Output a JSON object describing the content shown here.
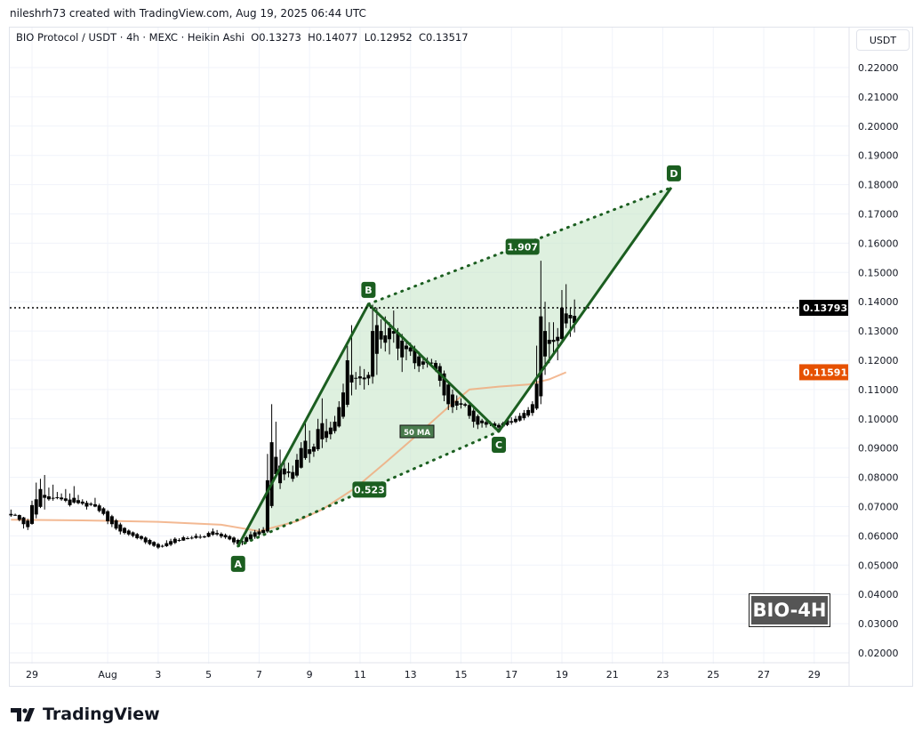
{
  "credit": "nileshrh73 created with TradingView.com, Aug 19, 2025 06:44 UTC",
  "legend": {
    "symbol": "BIO Protocol / USDT · 4h · MEXC · Heikin Ashi",
    "open": "O0.13273",
    "high": "H0.14077",
    "low": "L0.12952",
    "close": "C0.13517"
  },
  "unit_button": "USDT",
  "badge": "BIO-4H",
  "logo_text": "TradingView",
  "colors": {
    "candle": "#000000",
    "pattern": "#1b5e20",
    "pattern_fill": "#c8e6c9",
    "ma": "#f0a878",
    "ma_label": "#e65100",
    "price_label": "#000000"
  },
  "chart_data": {
    "type": "candlestick",
    "ylim": [
      0.015,
      0.225
    ],
    "xlim": [
      "2025-07-28 00:00",
      "2025-08-31 00:00"
    ],
    "y_ticks": [
      "0.02000",
      "0.03000",
      "0.04000",
      "0.05000",
      "0.06000",
      "0.07000",
      "0.08000",
      "0.09000",
      "0.10000",
      "0.11000",
      "0.12000",
      "0.13000",
      "0.14000",
      "0.15000",
      "0.16000",
      "0.17000",
      "0.18000",
      "0.19000",
      "0.20000",
      "0.21000",
      "0.22000"
    ],
    "x_ticks": [
      {
        "label": "29",
        "date": "2025-07-29 00:00"
      },
      {
        "label": "Aug",
        "date": "2025-08-01 00:00"
      },
      {
        "label": "3",
        "date": "2025-08-03 00:00"
      },
      {
        "label": "5",
        "date": "2025-08-05 00:00"
      },
      {
        "label": "7",
        "date": "2025-08-07 00:00"
      },
      {
        "label": "9",
        "date": "2025-08-09 00:00"
      },
      {
        "label": "11",
        "date": "2025-08-11 00:00"
      },
      {
        "label": "13",
        "date": "2025-08-13 00:00"
      },
      {
        "label": "15",
        "date": "2025-08-15 00:00"
      },
      {
        "label": "17",
        "date": "2025-08-17 00:00"
      },
      {
        "label": "19",
        "date": "2025-08-19 00:00"
      },
      {
        "label": "21",
        "date": "2025-08-21 00:00"
      },
      {
        "label": "23",
        "date": "2025-08-23 00:00"
      },
      {
        "label": "25",
        "date": "2025-08-25 00:00"
      },
      {
        "label": "27",
        "date": "2025-08-27 00:00"
      },
      {
        "label": "29",
        "date": "2025-08-29 00:00"
      }
    ],
    "grid": true,
    "current_price": {
      "value": 0.13793,
      "label": "0.13793"
    },
    "ma": {
      "name": "50 MA",
      "last_label": "0.11591",
      "points": [
        [
          "2025-07-28 04:00",
          0.0655
        ],
        [
          "2025-07-31 00:00",
          0.0653
        ],
        [
          "2025-08-03 00:00",
          0.0648
        ],
        [
          "2025-08-05 12:00",
          0.0638
        ],
        [
          "2025-08-07 00:00",
          0.0616
        ],
        [
          "2025-08-08 12:00",
          0.065
        ],
        [
          "2025-08-09 12:00",
          0.069
        ],
        [
          "2025-08-10 20:00",
          0.0765
        ],
        [
          "2025-08-12 00:00",
          0.085
        ],
        [
          "2025-08-13 08:00",
          0.095
        ],
        [
          "2025-08-14 12:00",
          0.104
        ],
        [
          "2025-08-15 08:00",
          0.11
        ],
        [
          "2025-08-16 12:00",
          0.111
        ],
        [
          "2025-08-17 16:00",
          0.1117
        ],
        [
          "2025-08-18 12:00",
          0.1135
        ],
        [
          "2025-08-19 04:00",
          0.1159
        ]
      ]
    },
    "pattern": {
      "points": [
        {
          "label": "A",
          "date": "2025-08-06 04:00",
          "price": 0.0565
        },
        {
          "label": "B",
          "date": "2025-08-11 08:00",
          "price": 0.1392
        },
        {
          "label": "C",
          "date": "2025-08-16 12:00",
          "price": 0.0957
        },
        {
          "label": "D",
          "date": "2025-08-23 08:00",
          "price": 0.179
        }
      ],
      "ratios": [
        {
          "between": "B-D",
          "label": "1.907"
        },
        {
          "between": "A-C",
          "label": "0.523"
        }
      ]
    },
    "candles": [
      [
        "2025-07-28 04:00",
        0.067,
        0.069,
        0.0665,
        0.0675
      ],
      [
        "2025-07-28 08:00",
        0.0672,
        0.0676,
        0.0668,
        0.067
      ],
      [
        "2025-07-28 12:00",
        0.0671,
        0.0673,
        0.065,
        0.0655
      ],
      [
        "2025-07-28 16:00",
        0.0663,
        0.0665,
        0.0625,
        0.064
      ],
      [
        "2025-07-28 20:00",
        0.0652,
        0.0658,
        0.062,
        0.063
      ],
      [
        "2025-07-29 00:00",
        0.0641,
        0.072,
        0.0638,
        0.0705
      ],
      [
        "2025-07-29 04:00",
        0.0673,
        0.0782,
        0.066,
        0.0725
      ],
      [
        "2025-07-29 08:00",
        0.0699,
        0.0795,
        0.0695,
        0.076
      ],
      [
        "2025-07-29 12:00",
        0.073,
        0.0808,
        0.069,
        0.074
      ],
      [
        "2025-07-29 16:00",
        0.0735,
        0.0765,
        0.072,
        0.0725
      ],
      [
        "2025-07-29 20:00",
        0.073,
        0.0775,
        0.072,
        0.073
      ],
      [
        "2025-07-30 00:00",
        0.073,
        0.075,
        0.0725,
        0.0732
      ],
      [
        "2025-07-30 04:00",
        0.0731,
        0.0745,
        0.072,
        0.0725
      ],
      [
        "2025-07-30 08:00",
        0.0728,
        0.076,
        0.0715,
        0.072
      ],
      [
        "2025-07-30 12:00",
        0.0724,
        0.0745,
        0.07,
        0.0705
      ],
      [
        "2025-07-30 16:00",
        0.0714,
        0.077,
        0.071,
        0.073
      ],
      [
        "2025-07-30 20:00",
        0.0722,
        0.074,
        0.0708,
        0.0712
      ],
      [
        "2025-07-31 00:00",
        0.0717,
        0.0725,
        0.0705,
        0.071
      ],
      [
        "2025-07-31 04:00",
        0.0713,
        0.072,
        0.069,
        0.07
      ],
      [
        "2025-07-31 08:00",
        0.0706,
        0.0715,
        0.0702,
        0.071
      ],
      [
        "2025-07-31 12:00",
        0.0708,
        0.073,
        0.0698,
        0.07
      ],
      [
        "2025-07-31 16:00",
        0.0704,
        0.071,
        0.068,
        0.0685
      ],
      [
        "2025-07-31 20:00",
        0.0694,
        0.0698,
        0.067,
        0.0675
      ],
      [
        "2025-08-01 00:00",
        0.0684,
        0.0688,
        0.064,
        0.065
      ],
      [
        "2025-08-01 04:00",
        0.0667,
        0.0672,
        0.063,
        0.064
      ],
      [
        "2025-08-01 08:00",
        0.0653,
        0.0658,
        0.062,
        0.0625
      ],
      [
        "2025-08-01 12:00",
        0.0639,
        0.0645,
        0.0605,
        0.0615
      ],
      [
        "2025-08-01 16:00",
        0.0627,
        0.063,
        0.0605,
        0.061
      ],
      [
        "2025-08-01 20:00",
        0.0618,
        0.0622,
        0.06,
        0.0605
      ],
      [
        "2025-08-02 00:00",
        0.0612,
        0.0615,
        0.0595,
        0.06
      ],
      [
        "2025-08-02 04:00",
        0.0606,
        0.061,
        0.0588,
        0.0592
      ],
      [
        "2025-08-02 08:00",
        0.0599,
        0.0602,
        0.0585,
        0.059
      ],
      [
        "2025-08-02 12:00",
        0.0594,
        0.0598,
        0.0572,
        0.0578
      ],
      [
        "2025-08-02 16:00",
        0.0586,
        0.059,
        0.0568,
        0.0572
      ],
      [
        "2025-08-02 20:00",
        0.0579,
        0.0582,
        0.0562,
        0.0566
      ],
      [
        "2025-08-03 00:00",
        0.0572,
        0.0576,
        0.0555,
        0.056
      ],
      [
        "2025-08-03 04:00",
        0.0566,
        0.057,
        0.056,
        0.0565
      ],
      [
        "2025-08-03 08:00",
        0.0565,
        0.0585,
        0.0562,
        0.0575
      ],
      [
        "2025-08-03 12:00",
        0.057,
        0.059,
        0.0565,
        0.0582
      ],
      [
        "2025-08-03 16:00",
        0.0576,
        0.0595,
        0.0572,
        0.059
      ],
      [
        "2025-08-03 20:00",
        0.0583,
        0.0592,
        0.058,
        0.0586
      ],
      [
        "2025-08-04 00:00",
        0.0584,
        0.06,
        0.0583,
        0.0595
      ],
      [
        "2025-08-04 04:00",
        0.059,
        0.0598,
        0.0588,
        0.0592
      ],
      [
        "2025-08-04 08:00",
        0.0591,
        0.06,
        0.0588,
        0.0594
      ],
      [
        "2025-08-04 12:00",
        0.0593,
        0.0608,
        0.059,
        0.06
      ],
      [
        "2025-08-04 16:00",
        0.0597,
        0.0605,
        0.059,
        0.0595
      ],
      [
        "2025-08-04 20:00",
        0.0596,
        0.0602,
        0.0592,
        0.0598
      ],
      [
        "2025-08-05 00:00",
        0.0597,
        0.0615,
        0.0595,
        0.061
      ],
      [
        "2025-08-05 04:00",
        0.0604,
        0.0625,
        0.06,
        0.0615
      ],
      [
        "2025-08-05 08:00",
        0.061,
        0.062,
        0.06,
        0.0605
      ],
      [
        "2025-08-05 12:00",
        0.0607,
        0.0612,
        0.0592,
        0.0598
      ],
      [
        "2025-08-05 16:00",
        0.0603,
        0.0608,
        0.059,
        0.0595
      ],
      [
        "2025-08-05 20:00",
        0.0599,
        0.0603,
        0.0585,
        0.0588
      ],
      [
        "2025-08-06 00:00",
        0.0594,
        0.0598,
        0.057,
        0.0578
      ],
      [
        "2025-08-06 04:00",
        0.0586,
        0.059,
        0.0565,
        0.0572
      ],
      [
        "2025-08-06 08:00",
        0.0579,
        0.0585,
        0.0568,
        0.0582
      ],
      [
        "2025-08-06 12:00",
        0.058,
        0.06,
        0.0575,
        0.0595
      ],
      [
        "2025-08-06 16:00",
        0.0588,
        0.0615,
        0.0585,
        0.0605
      ],
      [
        "2025-08-06 20:00",
        0.0597,
        0.062,
        0.059,
        0.0612
      ],
      [
        "2025-08-07 00:00",
        0.0605,
        0.0625,
        0.06,
        0.0615
      ],
      [
        "2025-08-07 04:00",
        0.061,
        0.063,
        0.0605,
        0.062
      ],
      [
        "2025-08-07 08:00",
        0.0615,
        0.088,
        0.061,
        0.079
      ],
      [
        "2025-08-07 12:00",
        0.0702,
        0.105,
        0.0695,
        0.092
      ],
      [
        "2025-08-07 16:00",
        0.0811,
        0.099,
        0.08,
        0.087
      ],
      [
        "2025-08-07 20:00",
        0.084,
        0.0895,
        0.076,
        0.078
      ],
      [
        "2025-08-08 00:00",
        0.081,
        0.086,
        0.079,
        0.083
      ],
      [
        "2025-08-08 04:00",
        0.082,
        0.085,
        0.08,
        0.0815
      ],
      [
        "2025-08-08 08:00",
        0.0818,
        0.084,
        0.0785,
        0.0795
      ],
      [
        "2025-08-08 12:00",
        0.0806,
        0.088,
        0.08,
        0.086
      ],
      [
        "2025-08-08 16:00",
        0.0833,
        0.092,
        0.083,
        0.09
      ],
      [
        "2025-08-08 20:00",
        0.0866,
        0.099,
        0.086,
        0.0925
      ],
      [
        "2025-08-09 00:00",
        0.0896,
        0.096,
        0.085,
        0.088
      ],
      [
        "2025-08-09 04:00",
        0.0888,
        0.0915,
        0.087,
        0.0905
      ],
      [
        "2025-08-09 08:00",
        0.0896,
        0.1,
        0.089,
        0.0965
      ],
      [
        "2025-08-09 12:00",
        0.093,
        0.107,
        0.09,
        0.0985
      ],
      [
        "2025-08-09 16:00",
        0.0958,
        0.1,
        0.092,
        0.0935
      ],
      [
        "2025-08-09 20:00",
        0.0947,
        0.099,
        0.093,
        0.097
      ],
      [
        "2025-08-10 00:00",
        0.0958,
        0.101,
        0.095,
        0.099
      ],
      [
        "2025-08-10 04:00",
        0.0974,
        0.106,
        0.097,
        0.104
      ],
      [
        "2025-08-10 08:00",
        0.1007,
        0.112,
        0.1,
        0.109
      ],
      [
        "2025-08-10 12:00",
        0.1048,
        0.125,
        0.104,
        0.12
      ],
      [
        "2025-08-10 16:00",
        0.1124,
        0.132,
        0.108,
        0.115
      ],
      [
        "2025-08-10 20:00",
        0.1137,
        0.116,
        0.11,
        0.114
      ],
      [
        "2025-08-11 00:00",
        0.1138,
        0.118,
        0.1115,
        0.1145
      ],
      [
        "2025-08-11 04:00",
        0.1141,
        0.117,
        0.11,
        0.1135
      ],
      [
        "2025-08-11 08:00",
        0.1138,
        0.116,
        0.1115,
        0.115
      ],
      [
        "2025-08-11 12:00",
        0.1144,
        0.139,
        0.112,
        0.13
      ],
      [
        "2025-08-11 16:00",
        0.1222,
        0.138,
        0.115,
        0.132
      ],
      [
        "2025-08-11 20:00",
        0.1271,
        0.134,
        0.124,
        0.13
      ],
      [
        "2025-08-12 00:00",
        0.1285,
        0.135,
        0.123,
        0.126
      ],
      [
        "2025-08-12 04:00",
        0.1272,
        0.133,
        0.122,
        0.131
      ],
      [
        "2025-08-12 08:00",
        0.1291,
        0.137,
        0.126,
        0.13
      ],
      [
        "2025-08-12 12:00",
        0.1295,
        0.131,
        0.12,
        0.124
      ],
      [
        "2025-08-12 16:00",
        0.1267,
        0.129,
        0.116,
        0.121
      ],
      [
        "2025-08-12 20:00",
        0.1238,
        0.127,
        0.12,
        0.125
      ],
      [
        "2025-08-13 00:00",
        0.1244,
        0.126,
        0.1215,
        0.123
      ],
      [
        "2025-08-13 04:00",
        0.1237,
        0.125,
        0.117,
        0.119
      ],
      [
        "2025-08-13 08:00",
        0.1213,
        0.123,
        0.116,
        0.118
      ],
      [
        "2025-08-13 12:00",
        0.1196,
        0.121,
        0.117,
        0.1185
      ],
      [
        "2025-08-13 16:00",
        0.119,
        0.121,
        0.1175,
        0.1195
      ],
      [
        "2025-08-13 20:00",
        0.1192,
        0.1205,
        0.118,
        0.119
      ],
      [
        "2025-08-14 00:00",
        0.1191,
        0.12,
        0.116,
        0.117
      ],
      [
        "2025-08-14 04:00",
        0.118,
        0.119,
        0.111,
        0.113
      ],
      [
        "2025-08-14 08:00",
        0.1155,
        0.1165,
        0.106,
        0.108
      ],
      [
        "2025-08-14 12:00",
        0.1117,
        0.113,
        0.103,
        0.105
      ],
      [
        "2025-08-14 16:00",
        0.1083,
        0.11,
        0.102,
        0.104
      ],
      [
        "2025-08-14 20:00",
        0.1061,
        0.108,
        0.103,
        0.1045
      ],
      [
        "2025-08-15 00:00",
        0.1053,
        0.107,
        0.1035,
        0.1048
      ],
      [
        "2025-08-15 04:00",
        0.105,
        0.1055,
        0.104,
        0.1045
      ],
      [
        "2025-08-15 08:00",
        0.1047,
        0.1055,
        0.1,
        0.101
      ],
      [
        "2025-08-15 12:00",
        0.1028,
        0.1035,
        0.097,
        0.099
      ],
      [
        "2025-08-15 16:00",
        0.1009,
        0.1015,
        0.0965,
        0.098
      ],
      [
        "2025-08-15 20:00",
        0.0994,
        0.1,
        0.097,
        0.0985
      ],
      [
        "2025-08-16 00:00",
        0.0989,
        0.1,
        0.097,
        0.098
      ],
      [
        "2025-08-16 04:00",
        0.0984,
        0.0992,
        0.0975,
        0.0985
      ],
      [
        "2025-08-16 08:00",
        0.0984,
        0.099,
        0.0965,
        0.0975
      ],
      [
        "2025-08-16 12:00",
        0.0979,
        0.0985,
        0.0958,
        0.097
      ],
      [
        "2025-08-16 16:00",
        0.0974,
        0.099,
        0.097,
        0.0985
      ],
      [
        "2025-08-16 20:00",
        0.0979,
        0.1,
        0.0975,
        0.0995
      ],
      [
        "2025-08-17 00:00",
        0.0987,
        0.1005,
        0.098,
        0.0992
      ],
      [
        "2025-08-17 04:00",
        0.0989,
        0.101,
        0.0985,
        0.1
      ],
      [
        "2025-08-17 08:00",
        0.0994,
        0.102,
        0.099,
        0.101
      ],
      [
        "2025-08-17 12:00",
        0.1002,
        0.103,
        0.0995,
        0.102
      ],
      [
        "2025-08-17 16:00",
        0.1011,
        0.104,
        0.1005,
        0.103
      ],
      [
        "2025-08-17 20:00",
        0.102,
        0.106,
        0.101,
        0.105
      ],
      [
        "2025-08-18 00:00",
        0.1035,
        0.125,
        0.103,
        0.112
      ],
      [
        "2025-08-18 04:00",
        0.1077,
        0.154,
        0.105,
        0.135
      ],
      [
        "2025-08-18 08:00",
        0.1213,
        0.14,
        0.115,
        0.13
      ],
      [
        "2025-08-18 12:00",
        0.1256,
        0.133,
        0.119,
        0.127
      ],
      [
        "2025-08-18 16:00",
        0.1263,
        0.133,
        0.122,
        0.127
      ],
      [
        "2025-08-18 20:00",
        0.1266,
        0.131,
        0.12,
        0.128
      ],
      [
        "2025-08-19 00:00",
        0.1273,
        0.144,
        0.126,
        0.138
      ],
      [
        "2025-08-19 04:00",
        0.1326,
        0.146,
        0.131,
        0.136
      ],
      [
        "2025-08-19 08:00",
        0.1343,
        0.138,
        0.128,
        0.1355
      ],
      [
        "2025-08-19 12:00",
        0.13273,
        0.14077,
        0.12952,
        0.13517
      ]
    ]
  }
}
